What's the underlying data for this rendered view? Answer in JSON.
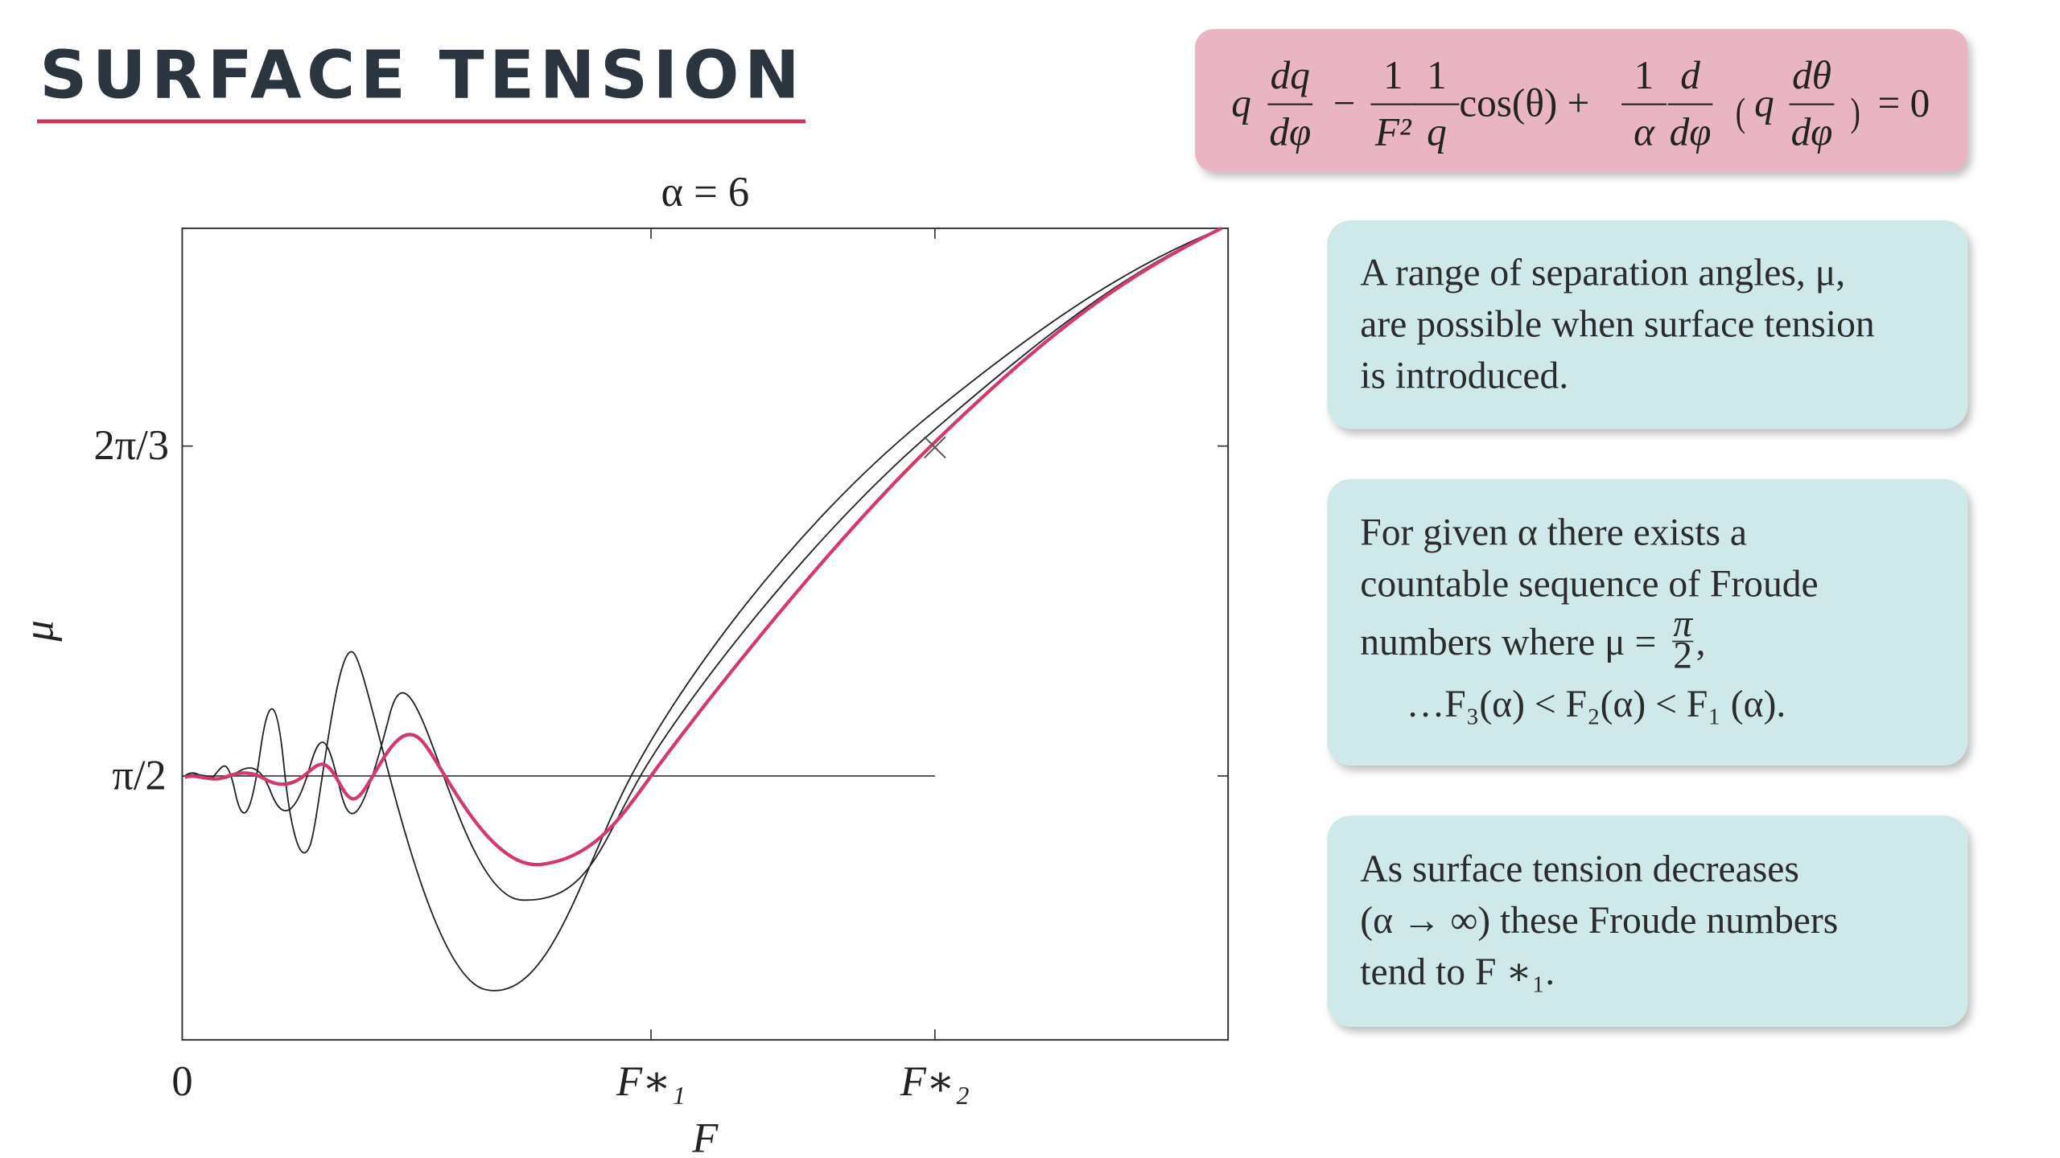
{
  "header": {
    "title": "SURFACE TENSION"
  },
  "equation": {
    "terms": [
      "q",
      {
        "num": "dq",
        "den": "dφ"
      },
      "−",
      {
        "num": "1",
        "den": "F²"
      },
      {
        "num": "1",
        "den": "q"
      },
      "cos(θ) +",
      {
        "num": "1",
        "den": "α"
      },
      {
        "num": "d",
        "den": "dφ"
      },
      "(",
      "q",
      {
        "num": "dθ",
        "den": "dφ"
      },
      ")",
      "= 0"
    ]
  },
  "plot": {
    "title": "α = 6",
    "x_label": "F",
    "y_label": "μ",
    "x_ticks": [
      "0",
      "F∗₁",
      "F∗₂"
    ],
    "y_ticks": [
      "2π/3",
      "π/2"
    ]
  },
  "notes": [
    {
      "lines": [
        "A range of separation angles, μ,",
        "are possible when surface tension",
        "is introduced."
      ]
    },
    {
      "lines": [
        "For given α there exists a",
        "countable sequence of Froude",
        "numbers where μ =",
        "…F₃(α) < F₂(α) < F₁ (α)."
      ],
      "fraction": {
        "num": "π",
        "den": "2"
      },
      "punct": ","
    },
    {
      "lines": [
        "As surface tension decreases",
        "(α → ∞) these Froude numbers",
        "tend to F ∗₁."
      ]
    }
  ]
}
